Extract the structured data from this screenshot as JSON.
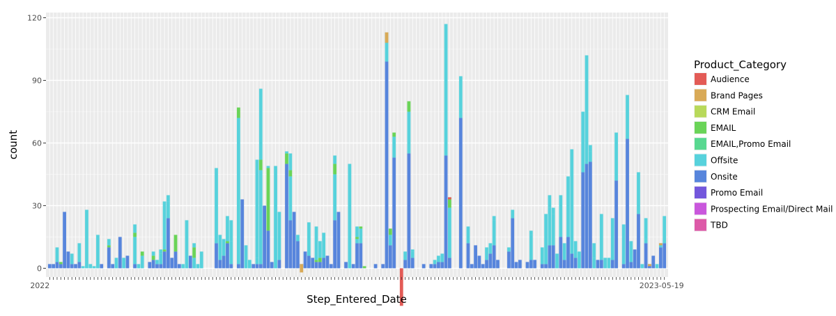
{
  "chart_data": {
    "type": "bar",
    "stacked": true,
    "xlabel": "Step_Entered_Date",
    "ylabel": "count",
    "ylim": [
      -4.2,
      122.5
    ],
    "yticks": [
      0,
      30,
      60,
      90,
      120
    ],
    "grid": true,
    "legend": {
      "title": "Product_Category",
      "position": "right",
      "entries": [
        {
          "name": "Audience",
          "color": "#e35b56"
        },
        {
          "name": "Brand Pages",
          "color": "#d9aa57"
        },
        {
          "name": "CRM Email",
          "color": "#b8d95a"
        },
        {
          "name": "EMAIL",
          "color": "#6ad458"
        },
        {
          "name": "EMAIL,Promo Email",
          "color": "#58d890"
        },
        {
          "name": "Offsite",
          "color": "#57d2dc"
        },
        {
          "name": "Onsite",
          "color": "#5785dc"
        },
        {
          "name": "Promo Email",
          "color": "#7357dc"
        },
        {
          "name": "Prospecting Email/Direct Mail",
          "color": "#c957dc"
        },
        {
          "name": "TBD",
          "color": "#dd5aa8"
        }
      ]
    },
    "x_tick_labels": {
      "first": "2022",
      "last": "2023-05-19"
    },
    "series": [
      {
        "name": "Onsite",
        "values": [
          2,
          2,
          3,
          2,
          27,
          8,
          2,
          2,
          3,
          0,
          0,
          0,
          0,
          0,
          2,
          0,
          10,
          2,
          0,
          15,
          0,
          6,
          0,
          2,
          0,
          0,
          0,
          3,
          4,
          2,
          2,
          8,
          24,
          5,
          8,
          2,
          0,
          0,
          6,
          0,
          0,
          0,
          0,
          0,
          0,
          12,
          4,
          6,
          12,
          2,
          0,
          2,
          33,
          0,
          0,
          2,
          2,
          2,
          30,
          18,
          3,
          0,
          4,
          0,
          50,
          23,
          27,
          13,
          2,
          8,
          6,
          5,
          3,
          3,
          5,
          6,
          2,
          23,
          27,
          0,
          3,
          0,
          2,
          12,
          12,
          0,
          0,
          0,
          2,
          0,
          2,
          99,
          11,
          53,
          0,
          0,
          4,
          55,
          5,
          0,
          0,
          2,
          0,
          2,
          2,
          3,
          3,
          54,
          5,
          0,
          0,
          72,
          0,
          12,
          2,
          11,
          6,
          2,
          4,
          7,
          11,
          4,
          0,
          0,
          8,
          24,
          3,
          4,
          0,
          3,
          4,
          4,
          0,
          2,
          2,
          11,
          11,
          0,
          15,
          4,
          15,
          7,
          5,
          0,
          46,
          50,
          51,
          0,
          4,
          4,
          0,
          0,
          4,
          42,
          0,
          2,
          62,
          3,
          9,
          26,
          0,
          12,
          2,
          6,
          0,
          10,
          12
        ]
      },
      {
        "name": "Offsite",
        "values": [
          0,
          0,
          7,
          0,
          0,
          0,
          5,
          0,
          9,
          1,
          28,
          2,
          1,
          16,
          0,
          0,
          0,
          0,
          5,
          0,
          5,
          0,
          0,
          13,
          0,
          6,
          0,
          0,
          0,
          2,
          5,
          0,
          8,
          0,
          0,
          0,
          2,
          23,
          0,
          5,
          2,
          8,
          0,
          0,
          0,
          36,
          0,
          8,
          0,
          11,
          0,
          70,
          0,
          11,
          4,
          0,
          3,
          45,
          0,
          0,
          0,
          49,
          23,
          0,
          0,
          21,
          0,
          3,
          0,
          0,
          16,
          0,
          0,
          0,
          12,
          0,
          0,
          22,
          0,
          0,
          0,
          50,
          0,
          2,
          7,
          0,
          0,
          0,
          0,
          0,
          0,
          13,
          5,
          10,
          0,
          0,
          4,
          20,
          3,
          0,
          0,
          0,
          0,
          0,
          2,
          3,
          4,
          52,
          24,
          0,
          0,
          20,
          0,
          8,
          0,
          0,
          0,
          0,
          0,
          0,
          12,
          0,
          0,
          0,
          0,
          4,
          0,
          0,
          0,
          0,
          12,
          0,
          0,
          8,
          24,
          18,
          15,
          7,
          0,
          0,
          29,
          50,
          8,
          8,
          0,
          1,
          5,
          5,
          0,
          22,
          0,
          0,
          20,
          0,
          0,
          19,
          0,
          10,
          0,
          0,
          2,
          2
        ]
      },
      {
        "name": "EMAIL",
        "values": [
          0,
          0,
          0,
          1,
          0,
          0,
          0,
          0,
          0,
          0,
          0,
          0,
          0,
          0,
          0,
          0,
          1,
          0,
          0,
          0,
          0,
          0,
          0,
          2,
          0,
          2,
          0,
          0,
          2,
          0,
          0,
          1,
          0,
          0,
          8,
          0,
          0,
          0,
          0,
          5,
          0,
          0,
          0,
          0,
          0,
          0,
          0,
          0,
          1,
          0,
          0,
          5,
          0,
          0,
          0,
          0,
          0,
          5,
          0,
          30,
          0,
          0,
          0,
          0,
          5,
          3,
          0,
          0,
          0,
          0,
          0,
          0,
          1,
          2,
          0,
          0,
          0,
          5,
          0,
          0,
          0,
          0,
          0,
          1,
          1,
          1,
          0,
          0,
          0,
          0,
          0,
          0,
          3,
          2,
          0,
          0,
          0,
          5,
          0,
          0,
          0,
          0,
          0,
          0,
          0,
          0,
          0,
          0,
          5,
          0,
          0,
          0,
          0,
          0,
          0,
          0,
          0,
          0,
          0,
          0,
          0,
          0,
          0,
          0,
          0,
          0,
          0,
          0,
          0,
          0,
          0,
          0,
          0,
          0,
          0,
          0,
          0,
          0,
          0,
          0,
          0,
          0,
          0,
          0,
          0,
          0,
          0,
          0,
          0,
          0,
          0,
          0,
          0,
          0,
          0,
          0,
          0,
          0,
          0,
          0,
          0,
          0,
          0,
          0,
          0,
          0
        ]
      },
      {
        "name": "Audience",
        "values": [
          0,
          0,
          0,
          0,
          0,
          0,
          0,
          0,
          0,
          0,
          0,
          0,
          0,
          0,
          0,
          0,
          0,
          0,
          0,
          0,
          0,
          0,
          0,
          0,
          0,
          0,
          0,
          0,
          0,
          0,
          0,
          0,
          0,
          0,
          0,
          0,
          0,
          0,
          0,
          0,
          0,
          0,
          0,
          0,
          0,
          0,
          0,
          0,
          0,
          0,
          0,
          0,
          0,
          0,
          0,
          0,
          0,
          0,
          0,
          0,
          0,
          0,
          0,
          0,
          0,
          0,
          0,
          0,
          0,
          0,
          0,
          0,
          0,
          0,
          0,
          0,
          0,
          0,
          0,
          0,
          0,
          0,
          0,
          0,
          0,
          0,
          0,
          0,
          0,
          0,
          0,
          0,
          0,
          0,
          0,
          0,
          0,
          0,
          0,
          0,
          0,
          0,
          0,
          0,
          0,
          0,
          0,
          0,
          0,
          0,
          0,
          0,
          0,
          0,
          0,
          0,
          0,
          0,
          0,
          0,
          0,
          0,
          0,
          0,
          0,
          0,
          0,
          0,
          0,
          0,
          0,
          0,
          0,
          0,
          0,
          0,
          0,
          0,
          0,
          0,
          0,
          0,
          0,
          0,
          0,
          0,
          0,
          0,
          0,
          0,
          0,
          0,
          0,
          0,
          0,
          0,
          0,
          0,
          0,
          0,
          0,
          0,
          0,
          0,
          0,
          0,
          0
        ]
      }
    ],
    "bar_values_total": [
      2,
      2,
      10,
      3,
      27,
      8,
      7,
      2,
      12,
      1,
      28,
      2,
      1,
      16,
      2,
      0,
      14,
      2,
      5,
      15,
      5,
      6,
      0,
      21,
      2,
      8,
      0,
      3,
      8,
      4,
      9,
      32,
      35,
      5,
      16,
      2,
      2,
      23,
      6,
      12,
      2,
      8,
      0,
      0,
      0,
      48,
      16,
      14,
      25,
      23,
      0,
      77,
      33,
      11,
      4,
      2,
      52,
      86,
      30,
      49,
      3,
      49,
      27,
      0,
      56,
      55,
      27,
      16,
      2,
      8,
      22,
      5,
      20,
      13,
      17,
      6,
      2,
      54,
      27,
      0,
      3,
      50,
      2,
      20,
      20,
      1,
      0,
      0,
      2,
      0,
      2,
      113,
      19,
      65,
      0,
      0,
      8,
      80,
      9,
      0,
      0,
      2,
      0,
      2,
      4,
      6,
      7,
      117,
      34,
      0,
      0,
      92,
      0,
      20,
      2,
      11,
      6,
      2,
      10,
      12,
      25,
      4,
      0,
      0,
      10,
      28,
      3,
      4,
      0,
      3,
      18,
      4,
      0,
      2,
      2,
      35,
      29,
      0,
      35,
      12,
      36,
      17,
      5,
      0,
      75,
      102,
      59,
      12,
      4,
      5,
      5,
      5,
      4,
      65,
      0,
      2,
      83,
      3,
      9,
      46,
      0,
      24,
      2,
      6,
      2,
      12,
      25
    ],
    "highlights": [
      {
        "index": 95,
        "audience": 18,
        "email": 12,
        "onsite_base": 2
      },
      {
        "index": 91,
        "brand_pages": 5,
        "email": 5,
        "offsite": 2
      },
      {
        "index": 108,
        "audience": 1,
        "email": 8
      },
      {
        "index": 68,
        "brand_pages": 4,
        "email": 5
      },
      {
        "index": 162,
        "brand_pages": 1
      },
      {
        "index": 165,
        "brand_pages": 1
      }
    ]
  }
}
